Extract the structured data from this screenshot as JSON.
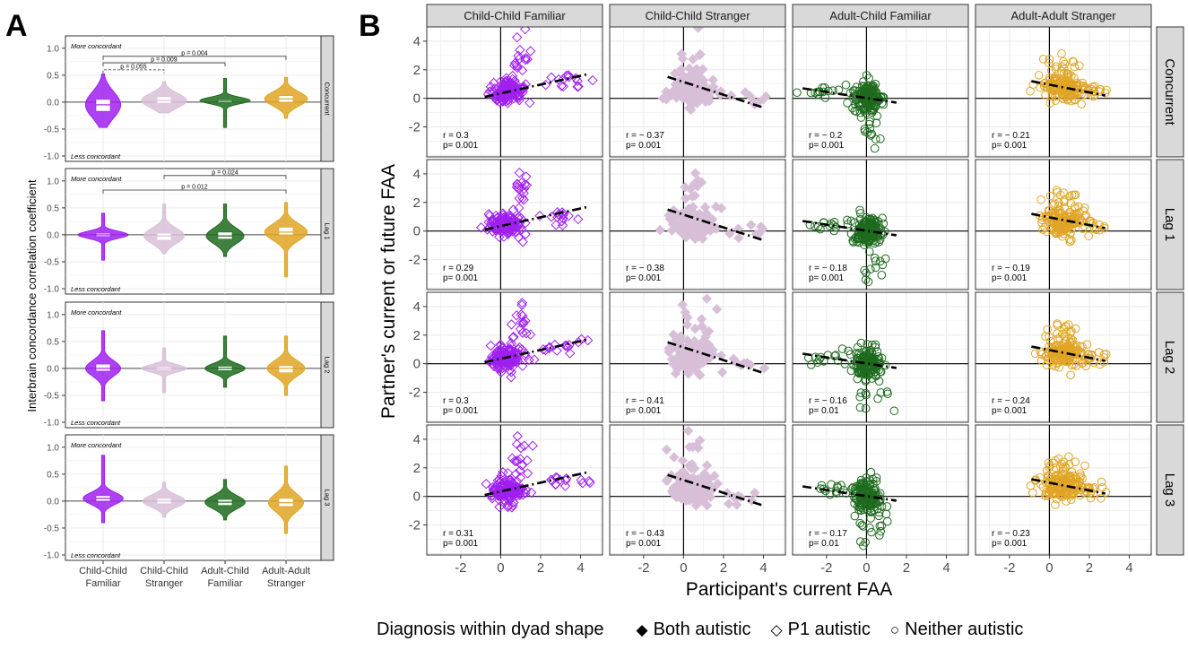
{
  "chart_data": [
    {
      "type": "violin",
      "panel_label": "A",
      "ylabel": "Interbrain concordance correlation coefficient",
      "ylim": [
        -1.0,
        1.0
      ],
      "yticks": [
        "1.0",
        "0.5",
        "0.0",
        "-0.5",
        "-1.0"
      ],
      "categories": [
        [
          "Child-Child",
          "Familiar"
        ],
        [
          "Child-Child",
          "Stranger"
        ],
        [
          "Adult-Child",
          "Familiar"
        ],
        [
          "Adult-Adult",
          "Stranger"
        ]
      ],
      "colors": [
        "#a020f0",
        "#d8bfd8",
        "#1e6b1e",
        "#e0a526"
      ],
      "top_note": "More concordant",
      "bottom_note": "Less concordant",
      "facets": [
        {
          "label": "Concurrent",
          "groups": [
            {
              "min": -0.47,
              "q1": -0.17,
              "median": -0.05,
              "q3": 0.05,
              "max": 0.52,
              "peak": 0.7
            },
            {
              "min": -0.2,
              "q1": -0.02,
              "median": 0.03,
              "q3": 0.1,
              "max": 0.38,
              "peak": 0.9
            },
            {
              "min": -0.47,
              "q1": 0.0,
              "median": 0.03,
              "q3": 0.05,
              "max": 0.44,
              "peak": 1.0
            },
            {
              "min": -0.3,
              "q1": 0.0,
              "median": 0.06,
              "q3": 0.12,
              "max": 0.46,
              "peak": 0.85
            }
          ],
          "comparisons": [
            {
              "from": 0,
              "to": 1,
              "y": 0.6,
              "label": "p = 0.055",
              "dashed": true
            },
            {
              "from": 0,
              "to": 2,
              "y": 0.73,
              "label": "p = 0.009",
              "dashed": false
            },
            {
              "from": 0,
              "to": 3,
              "y": 0.85,
              "label": "p = 0.004",
              "dashed": false
            }
          ]
        },
        {
          "label": "Lag 1",
          "groups": [
            {
              "min": -0.47,
              "q1": -0.03,
              "median": 0.0,
              "q3": 0.03,
              "max": 0.4,
              "peak": 1.0
            },
            {
              "min": -0.35,
              "q1": -0.1,
              "median": -0.02,
              "q3": 0.03,
              "max": 0.57,
              "peak": 0.8
            },
            {
              "min": -0.4,
              "q1": -0.08,
              "median": -0.02,
              "q3": 0.05,
              "max": 0.57,
              "peak": 0.75
            },
            {
              "min": -0.78,
              "q1": 0.0,
              "median": 0.05,
              "q3": 0.14,
              "max": 0.6,
              "peak": 0.85
            }
          ],
          "comparisons": [
            {
              "from": 1,
              "to": 3,
              "y": 1.1,
              "label": "p = 0.024",
              "dashed": false
            },
            {
              "from": 0,
              "to": 3,
              "y": 0.83,
              "label": "p = 0.012",
              "dashed": false
            }
          ]
        },
        {
          "label": "Lag 2",
          "groups": [
            {
              "min": -0.6,
              "q1": -0.05,
              "median": 0.0,
              "q3": 0.08,
              "max": 0.7,
              "peak": 0.7
            },
            {
              "min": -0.45,
              "q1": -0.03,
              "median": 0.0,
              "q3": 0.03,
              "max": 0.38,
              "peak": 0.9
            },
            {
              "min": -0.35,
              "q1": -0.04,
              "median": 0.0,
              "q3": 0.04,
              "max": 0.6,
              "peak": 0.8
            },
            {
              "min": -0.5,
              "q1": -0.08,
              "median": 0.0,
              "q3": 0.05,
              "max": 0.6,
              "peak": 0.75
            }
          ],
          "comparisons": []
        },
        {
          "label": "Lag 3",
          "groups": [
            {
              "min": -0.4,
              "q1": 0.0,
              "median": 0.05,
              "q3": 0.1,
              "max": 0.85,
              "peak": 0.8
            },
            {
              "min": -0.3,
              "q1": -0.05,
              "median": 0.0,
              "q3": 0.05,
              "max": 0.35,
              "peak": 0.85
            },
            {
              "min": -0.35,
              "q1": -0.08,
              "median": -0.02,
              "q3": 0.03,
              "max": 0.4,
              "peak": 0.8
            },
            {
              "min": -0.6,
              "q1": -0.1,
              "median": -0.03,
              "q3": 0.05,
              "max": 0.65,
              "peak": 0.7
            }
          ],
          "comparisons": []
        }
      ]
    },
    {
      "type": "scatter",
      "panel_label": "B",
      "xlabel": "Participant's current FAA",
      "ylabel": "Partner's current or future FAA",
      "xlim": [
        -3.7,
        5.1
      ],
      "ylim": [
        -4.1,
        5.0
      ],
      "xticks": [
        "-2",
        "0",
        "2",
        "4"
      ],
      "yticks": [
        "4",
        "2",
        "0",
        "-2"
      ],
      "columns": [
        {
          "label": "Child-Child Familiar",
          "color": "#a020f0",
          "shape": "diamond-open",
          "clusters": [
            {
              "cx": 0.3,
              "cy": 0.45,
              "sx": 0.4,
              "sy": 0.4,
              "n": 140
            },
            {
              "cx": 1.0,
              "cy": 2.9,
              "sx": 0.25,
              "sy": 0.9,
              "n": 16
            },
            {
              "cx": 3.3,
              "cy": 1.1,
              "sx": 0.7,
              "sy": 0.25,
              "n": 14
            }
          ],
          "fit": [
            [
              -0.8,
              0.1
            ],
            [
              4.4,
              1.7
            ]
          ]
        },
        {
          "label": "Child-Child Stranger",
          "color": "#d8bfd8",
          "shape": "diamond-filled",
          "clusters": [
            {
              "cx": 0.4,
              "cy": 0.6,
              "sx": 0.55,
              "sy": 0.55,
              "n": 130
            },
            {
              "cx": 0.3,
              "cy": 2.8,
              "sx": 0.5,
              "sy": 0.7,
              "n": 12
            },
            {
              "cx": 3.0,
              "cy": -0.1,
              "sx": 0.6,
              "sy": 0.3,
              "n": 8
            }
          ],
          "fit": [
            [
              -0.8,
              1.5
            ],
            [
              3.9,
              -0.6
            ]
          ]
        },
        {
          "label": "Adult-Child Familiar",
          "color": "#1e6b1e",
          "shape": "circle-open",
          "clusters": [
            {
              "cx": 0.05,
              "cy": 0.0,
              "sx": 0.35,
              "sy": 0.55,
              "n": 150
            },
            {
              "cx": -1.8,
              "cy": 0.4,
              "sx": 0.8,
              "sy": 0.25,
              "n": 14
            },
            {
              "cx": 0.3,
              "cy": -2.4,
              "sx": 0.4,
              "sy": 0.6,
              "n": 12
            }
          ],
          "fit": [
            [
              -3.2,
              0.7
            ],
            [
              1.5,
              -0.3
            ]
          ]
        },
        {
          "label": "Adult-Adult Stranger",
          "color": "#e0a526",
          "shape": "circle-open",
          "clusters": [
            {
              "cx": 0.7,
              "cy": 0.7,
              "sx": 0.55,
              "sy": 0.45,
              "n": 150
            },
            {
              "cx": 0.6,
              "cy": 2.2,
              "sx": 0.4,
              "sy": 0.4,
              "n": 18
            },
            {
              "cx": 2.3,
              "cy": 0.4,
              "sx": 0.4,
              "sy": 0.3,
              "n": 14
            }
          ],
          "fit": [
            [
              -0.9,
              1.2
            ],
            [
              2.8,
              0.2
            ]
          ]
        }
      ],
      "rows": [
        {
          "label": "Concurrent",
          "stats": [
            {
              "r": "r = 0.3",
              "p": "p= 0.001"
            },
            {
              "r": "r = − 0.37",
              "p": "p= 0.001"
            },
            {
              "r": "r = − 0.2",
              "p": "p= 0.001"
            },
            {
              "r": "r = − 0.21",
              "p": "p= 0.001"
            }
          ]
        },
        {
          "label": "Lag 1",
          "stats": [
            {
              "r": "r = 0.29",
              "p": "p= 0.001"
            },
            {
              "r": "r = − 0.38",
              "p": "p= 0.001"
            },
            {
              "r": "r = − 0.18",
              "p": "p= 0.001"
            },
            {
              "r": "r = − 0.19",
              "p": "p= 0.001"
            }
          ]
        },
        {
          "label": "Lag 2",
          "stats": [
            {
              "r": "r = 0.3",
              "p": "p= 0.001"
            },
            {
              "r": "r = − 0.41",
              "p": "p= 0.001"
            },
            {
              "r": "r = − 0.16",
              "p": "p= 0.01"
            },
            {
              "r": "r = − 0.24",
              "p": "p= 0.001"
            }
          ]
        },
        {
          "label": "Lag 3",
          "stats": [
            {
              "r": "r = 0.31",
              "p": "p= 0.001"
            },
            {
              "r": "r = − 0.43",
              "p": "p= 0.001"
            },
            {
              "r": "r = − 0.17",
              "p": "p= 0.01"
            },
            {
              "r": "r = − 0.23",
              "p": "p= 0.001"
            }
          ]
        }
      ],
      "legend": {
        "title": "Diagnosis within dyad shape",
        "placement": "bottom",
        "items": [
          {
            "symbol": "◆",
            "label": "Both autistic"
          },
          {
            "symbol": "◇",
            "label": "P1 autistic"
          },
          {
            "symbol": "○",
            "label": "Neither autistic"
          }
        ]
      }
    }
  ]
}
